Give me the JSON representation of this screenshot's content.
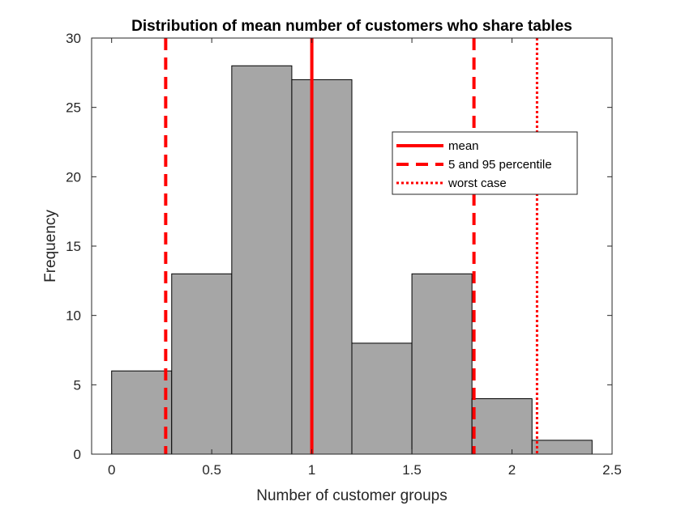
{
  "chart_data": {
    "type": "bar",
    "title": "Distribution of mean number of customers who share tables",
    "xlabel": "Number of customer groups",
    "ylabel": "Frequency",
    "xlim": [
      -0.1,
      2.5
    ],
    "ylim": [
      0,
      30
    ],
    "xticks": [
      0,
      0.5,
      1,
      1.5,
      2,
      2.5
    ],
    "xtick_labels": [
      "0",
      "0.5",
      "1",
      "1.5",
      "2",
      "2.5"
    ],
    "yticks": [
      0,
      5,
      10,
      15,
      20,
      25,
      30
    ],
    "ytick_labels": [
      "0",
      "5",
      "10",
      "15",
      "20",
      "25",
      "30"
    ],
    "bins": [
      {
        "start": 0.0,
        "end": 0.3,
        "value": 6
      },
      {
        "start": 0.3,
        "end": 0.6,
        "value": 13
      },
      {
        "start": 0.6,
        "end": 0.9,
        "value": 28
      },
      {
        "start": 0.9,
        "end": 1.2,
        "value": 27
      },
      {
        "start": 1.2,
        "end": 1.5,
        "value": 8
      },
      {
        "start": 1.5,
        "end": 1.8,
        "value": 13
      },
      {
        "start": 1.8,
        "end": 2.1,
        "value": 4
      },
      {
        "start": 2.1,
        "end": 2.4,
        "value": 1
      }
    ],
    "bar_color": "#a6a6a6",
    "reference_lines": [
      {
        "name": "mean",
        "style": "solid",
        "x": [
          1.0
        ],
        "color": "#ff0000"
      },
      {
        "name": "5 and 95 percentile",
        "style": "dashed",
        "x": [
          0.27,
          1.81
        ],
        "color": "#ff0000"
      },
      {
        "name": "worst case",
        "style": "dotted",
        "x": [
          2.125
        ],
        "color": "#ff0000"
      }
    ],
    "legend": {
      "placement": "upper-right-inside",
      "entries": [
        "mean",
        "5 and 95 percentile",
        "worst case"
      ]
    },
    "grid": false,
    "box": true
  }
}
